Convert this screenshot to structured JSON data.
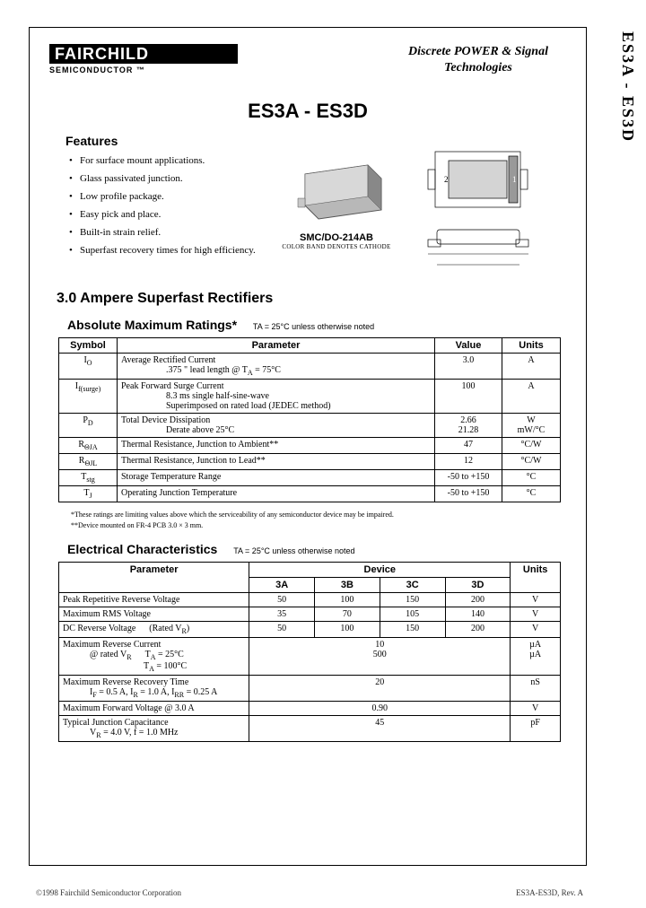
{
  "side_label": "ES3A - ES3D",
  "logo": {
    "brand": "FAIRCHILD",
    "subtitle": "SEMICONDUCTOR ™"
  },
  "header_right_l1": "Discrete POWER & Signal",
  "header_right_l2": "Technologies",
  "product_title": "ES3A - ES3D",
  "features": {
    "heading": "Features",
    "items": [
      "For surface mount applications.",
      "Glass passivated junction.",
      "Low profile package.",
      "Easy pick and place.",
      "Built-in strain relief.",
      "Superfast recovery times for high efficiency."
    ]
  },
  "package": {
    "name": "SMC/DO-214AB",
    "note": "COLOR BAND DENOTES CATHODE"
  },
  "section_title": "3.0 Ampere Superfast Rectifiers",
  "abs_max": {
    "heading": "Absolute Maximum Ratings*",
    "condition": "TA = 25°C unless otherwise noted",
    "cols": {
      "symbol": "Symbol",
      "param": "Parameter",
      "value": "Value",
      "units": "Units"
    },
    "rows": [
      {
        "sym": "I<sub>O</sub>",
        "param": "Average Rectified Current",
        "sub": ".375 \" lead length @ T<sub>A</sub> = 75°C",
        "value": "3.0",
        "units": "A"
      },
      {
        "sym": "I<sub>f(surge)</sub>",
        "param": "Peak Forward Surge Current",
        "sub": "8.3 ms single half-sine-wave<br>Superimposed on rated load (JEDEC method)",
        "value": "100",
        "units": "A"
      },
      {
        "sym": "P<sub>D</sub>",
        "param": "Total Device Dissipation",
        "sub": "Derate above 25°C",
        "value": "2.66<br>21.28",
        "units": "W<br>mW/°C"
      },
      {
        "sym": "R<sub>ΘJA</sub>",
        "param": "Thermal Resistance, Junction to Ambient**",
        "sub": "",
        "value": "47",
        "units": "°C/W"
      },
      {
        "sym": "R<sub>ΘJL</sub>",
        "param": "Thermal Resistance, Junction to Lead**",
        "sub": "",
        "value": "12",
        "units": "°C/W"
      },
      {
        "sym": "T<sub>stg</sub>",
        "param": "Storage Temperature Range",
        "sub": "",
        "value": "-50 to +150",
        "units": "°C"
      },
      {
        "sym": "T<sub>J</sub>",
        "param": "Operating Junction Temperature",
        "sub": "",
        "value": "-50 to +150",
        "units": "°C"
      }
    ],
    "foot1": "*These ratings are limiting values above which the serviceability of any semiconductor device may be impaired.",
    "foot2": "**Device mounted on FR-4 PCB 3.0 × 3 mm."
  },
  "elec": {
    "heading": "Electrical Characteristics",
    "condition": "TA = 25°C unless otherwise noted",
    "cols": {
      "param": "Parameter",
      "device": "Device",
      "units": "Units",
      "devices": [
        "3A",
        "3B",
        "3C",
        "3D"
      ]
    },
    "rows": [
      {
        "param": "Peak Repetitive Reverse Voltage",
        "vals": [
          "50",
          "100",
          "150",
          "200"
        ],
        "units": "V"
      },
      {
        "param": "Maximum RMS Voltage",
        "vals": [
          "35",
          "70",
          "105",
          "140"
        ],
        "units": "V"
      },
      {
        "param": "DC Reverse Voltage&nbsp;&nbsp;&nbsp;&nbsp;&nbsp;&nbsp;(Rated V<sub>R</sub>)",
        "vals": [
          "50",
          "100",
          "150",
          "200"
        ],
        "units": "V"
      },
      {
        "param": "Maximum Reverse Current",
        "sub": "@ rated V<sub>R</sub>&nbsp;&nbsp;&nbsp;&nbsp;&nbsp;&nbsp;T<sub>A</sub> = 25°C<br>&nbsp;&nbsp;&nbsp;&nbsp;&nbsp;&nbsp;&nbsp;&nbsp;&nbsp;&nbsp;&nbsp;&nbsp;&nbsp;&nbsp;&nbsp;&nbsp;&nbsp;&nbsp;&nbsp;&nbsp;&nbsp;&nbsp;&nbsp;&nbsp;T<sub>A</sub> = 100°C",
        "span": "10<br>500",
        "units": "µA<br>µA"
      },
      {
        "param": "Maximum Reverse Recovery Time",
        "sub": "I<sub>F</sub> = 0.5 A, I<sub>R</sub> = 1.0 A, I<sub>RR</sub> = 0.25 A",
        "span": "20",
        "units": "nS"
      },
      {
        "param": "Maximum Forward Voltage @ 3.0 A",
        "span": "0.90",
        "units": "V"
      },
      {
        "param": "Typical Junction Capacitance",
        "sub": "V<sub>R</sub> = 4.0 V, f = 1.0 MHz",
        "span": "45",
        "units": "pF"
      }
    ]
  },
  "footer": {
    "left": "©1998 Fairchild Semiconductor Corporation",
    "right": "ES3A-ES3D, Rev. A"
  }
}
